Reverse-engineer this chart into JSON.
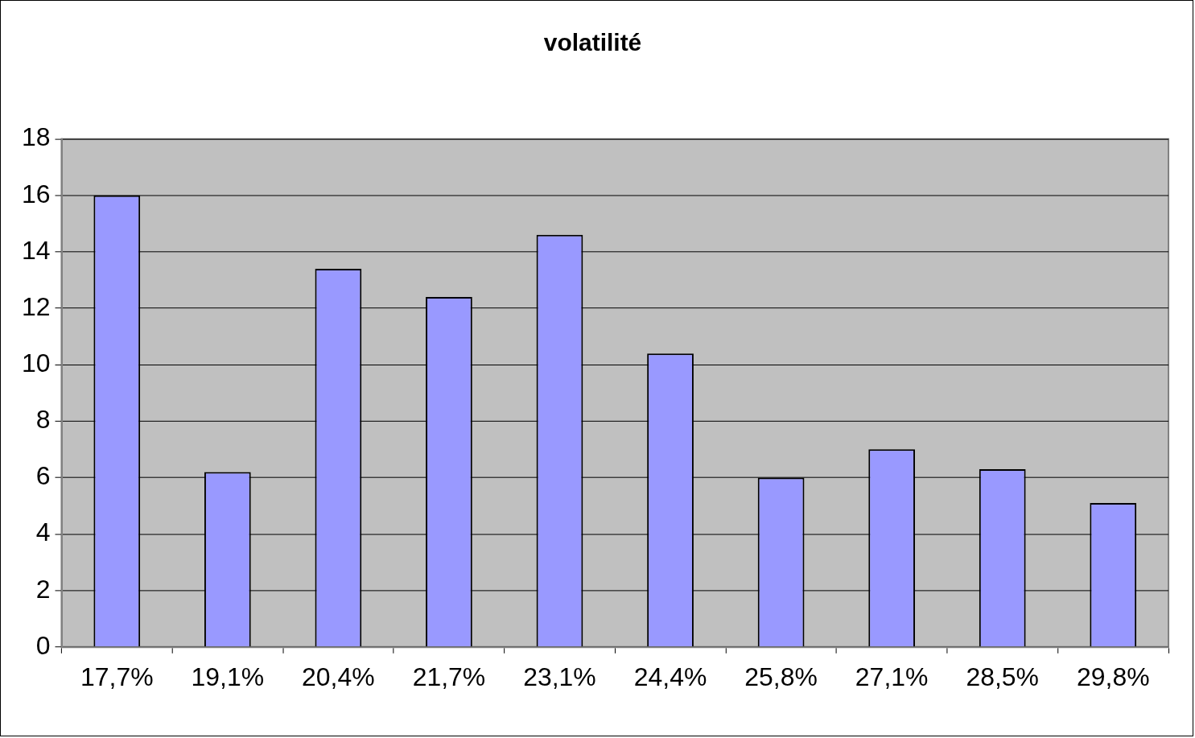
{
  "chart_data": {
    "type": "bar",
    "title": "volatilité",
    "categories": [
      "17,7%",
      "19,1%",
      "20,4%",
      "21,7%",
      "23,1%",
      "24,4%",
      "25,8%",
      "27,1%",
      "28,5%",
      "29,8%"
    ],
    "values": [
      16.0,
      6.2,
      13.4,
      12.4,
      14.6,
      10.4,
      6.0,
      7.0,
      6.3,
      5.1
    ],
    "color": "#9999ff",
    "ylim": [
      0,
      18
    ],
    "yticks": [
      0,
      2,
      4,
      6,
      8,
      10,
      12,
      14,
      16,
      18
    ],
    "grid": "y",
    "legend": false
  }
}
